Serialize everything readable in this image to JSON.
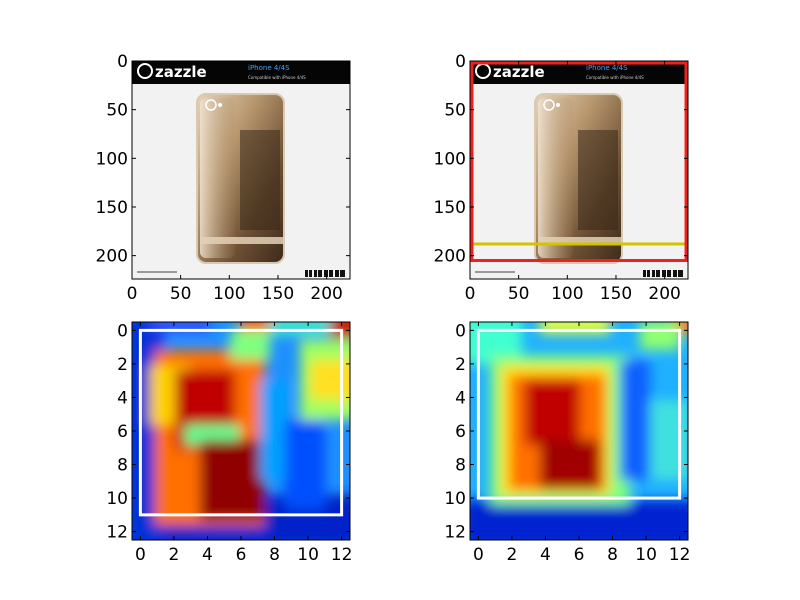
{
  "figure": {
    "panels": [
      {
        "id": "photo-original",
        "kind": "image",
        "image_size": 224,
        "xticks": [
          "0",
          "50",
          "100",
          "150",
          "200"
        ],
        "yticks": [
          "0",
          "50",
          "100",
          "150",
          "200"
        ],
        "photo": {
          "brand_text": "zazzle",
          "product_title": "iPhone 4/4S",
          "product_subtitle": "Compatible with iPhone 4/4S"
        },
        "boxes": []
      },
      {
        "id": "photo-boxes",
        "kind": "image",
        "image_size": 224,
        "xticks": [
          "0",
          "50",
          "100",
          "150",
          "200"
        ],
        "yticks": [
          "0",
          "50",
          "100",
          "150",
          "200"
        ],
        "photo": {
          "brand_text": "zazzle",
          "product_title": "iPhone 4/4S",
          "product_subtitle": "Compatible with iPhone 4/4S"
        },
        "boxes": [
          {
            "color": "#d4c400",
            "x0": 2,
            "y0": 2,
            "x1": 222,
            "y1": 188
          },
          {
            "color": "#ee2020",
            "x0": 2,
            "y0": 2,
            "x1": 222,
            "y1": 205
          }
        ]
      },
      {
        "id": "heatmap-left",
        "kind": "heatmap",
        "grid_size": 13,
        "xticks": [
          "0",
          "2",
          "4",
          "6",
          "8",
          "10",
          "12"
        ],
        "yticks": [
          "0",
          "2",
          "4",
          "6",
          "8",
          "10",
          "12"
        ],
        "colormap": "jet",
        "box": {
          "color": "#ffffff",
          "x0": 0,
          "y0": 0,
          "x1": 12,
          "y1": 11
        }
      },
      {
        "id": "heatmap-right",
        "kind": "heatmap",
        "grid_size": 13,
        "xticks": [
          "0",
          "2",
          "4",
          "6",
          "8",
          "10",
          "12"
        ],
        "yticks": [
          "0",
          "2",
          "4",
          "6",
          "8",
          "10",
          "12"
        ],
        "colormap": "jet",
        "box": {
          "color": "#ffffff",
          "x0": 0,
          "y0": 0,
          "x1": 12,
          "y1": 10
        }
      }
    ]
  }
}
